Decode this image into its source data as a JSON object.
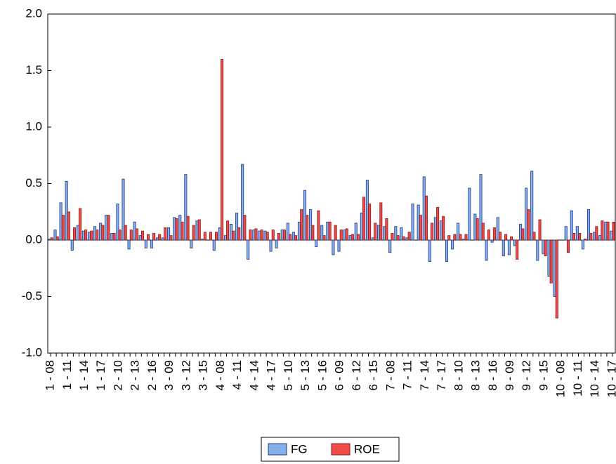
{
  "chart_data": {
    "type": "bar",
    "categories": [
      "1 - 08",
      null,
      null,
      "1 - 11",
      null,
      null,
      "1 - 14",
      null,
      null,
      "1 - 17",
      null,
      null,
      "2 - 10",
      null,
      null,
      "2 - 13",
      null,
      null,
      "2 - 16",
      null,
      null,
      "3 - 09",
      null,
      null,
      "3 - 12",
      null,
      null,
      "3 - 15",
      null,
      null,
      "4 - 08",
      null,
      null,
      "4 - 11",
      null,
      null,
      "4 - 14",
      null,
      null,
      "4 - 17",
      null,
      null,
      "5 - 10",
      null,
      null,
      "5 - 13",
      null,
      null,
      "5 - 16",
      null,
      null,
      "6 - 09",
      null,
      null,
      "6 - 12",
      null,
      null,
      "6 - 15",
      null,
      null,
      "7 - 08",
      null,
      null,
      "7 - 11",
      null,
      null,
      "7 - 14",
      null,
      null,
      "7 - 17",
      null,
      null,
      "8 - 10",
      null,
      null,
      "8 - 13",
      null,
      null,
      "8 - 16",
      null,
      null,
      "9 - 09",
      null,
      null,
      "9 - 12",
      null,
      null,
      "9 - 15",
      null,
      null,
      "10 - 08",
      null,
      null,
      "10 - 11",
      null,
      null,
      "10 - 14",
      null,
      null,
      "10 - 17"
    ],
    "series": [
      {
        "name": "FG",
        "color": "#87aee8",
        "stroke": "#1a3a8c",
        "values": [
          0.01,
          0.09,
          0.33,
          0.52,
          -0.09,
          0.13,
          0.08,
          0.07,
          0.12,
          0.15,
          0.22,
          0.06,
          0.32,
          0.54,
          -0.08,
          0.16,
          0.04,
          -0.07,
          -0.07,
          0.02,
          0.02,
          0.11,
          0.2,
          0.22,
          0.58,
          -0.07,
          0.17,
          0.01,
          0.0,
          -0.09,
          0.11,
          0.04,
          0.14,
          0.24,
          0.67,
          -0.17,
          0.09,
          0.08,
          0.08,
          -0.1,
          -0.07,
          0.09,
          0.15,
          0.07,
          0.16,
          0.44,
          0.27,
          -0.06,
          0.13,
          0.16,
          -0.13,
          -0.1,
          0.09,
          0.04,
          0.15,
          0.24,
          0.53,
          0.02,
          0.13,
          0.12,
          -0.11,
          0.12,
          0.11,
          0.02,
          0.32,
          0.31,
          0.56,
          -0.19,
          0.2,
          0.17,
          -0.19,
          -0.08,
          0.15,
          0.01,
          0.46,
          0.23,
          0.58,
          -0.18,
          -0.02,
          0.2,
          -0.14,
          -0.13,
          -0.05,
          0.14,
          0.46,
          0.61,
          -0.18,
          -0.12,
          -0.32,
          -0.5,
          0.0,
          0.12,
          0.26,
          0.12,
          -0.08,
          0.27,
          0.07,
          0.04,
          0.16,
          0.08
        ]
      },
      {
        "name": "ROE",
        "color": "#f04a4a",
        "stroke": "#8c1a1a",
        "values": [
          0.02,
          0.03,
          0.22,
          0.25,
          0.11,
          0.28,
          0.09,
          0.08,
          0.09,
          0.13,
          0.22,
          0.06,
          0.09,
          0.13,
          0.09,
          0.1,
          0.08,
          0.05,
          0.06,
          0.05,
          0.11,
          0.04,
          0.19,
          0.16,
          0.21,
          0.13,
          0.18,
          0.07,
          0.07,
          0.07,
          1.6,
          0.17,
          0.08,
          0.11,
          0.22,
          0.09,
          0.1,
          0.09,
          0.07,
          0.09,
          0.06,
          0.09,
          0.05,
          0.04,
          0.27,
          0.22,
          0.13,
          0.26,
          0.04,
          0.16,
          0.13,
          0.09,
          0.1,
          0.05,
          0.05,
          0.38,
          0.32,
          0.15,
          0.33,
          0.19,
          0.06,
          0.04,
          0.03,
          0.07,
          0.0,
          0.22,
          0.39,
          0.15,
          0.29,
          0.21,
          0.04,
          0.05,
          0.05,
          0.05,
          0.0,
          0.19,
          0.15,
          0.09,
          0.11,
          0.07,
          0.05,
          0.03,
          -0.17,
          0.1,
          0.27,
          0.07,
          0.18,
          -0.14,
          -0.38,
          -0.69,
          0.0,
          -0.11,
          0.06,
          0.06,
          0.01,
          0.06,
          0.12,
          0.17,
          0.16,
          0.16
        ]
      }
    ],
    "ylim": [
      -1,
      2
    ],
    "yticks": [
      {
        "value": -1,
        "label": "-1.0"
      },
      -0.5,
      {
        "value": 0,
        "label": "0.0"
      },
      0.5,
      {
        "value": 1,
        "label": "1.0"
      },
      1.5,
      {
        "value": 2,
        "label": "2.0"
      }
    ],
    "legend": "bottom"
  }
}
